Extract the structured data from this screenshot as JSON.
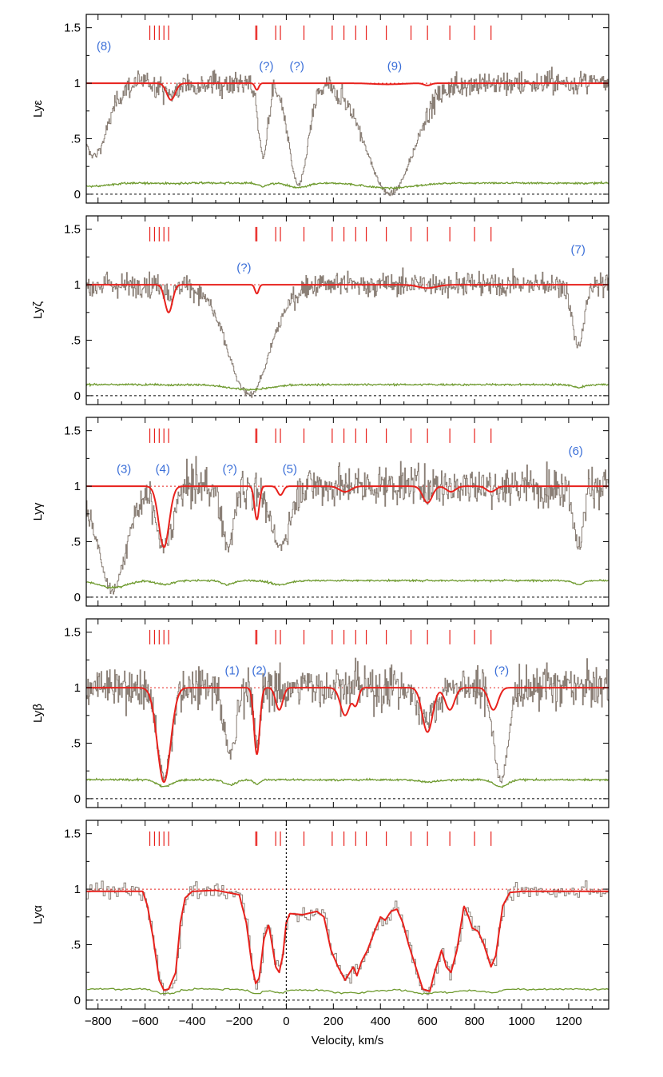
{
  "chart_data": {
    "type": "line",
    "xlabel": "Velocity, km/s",
    "xlim": [
      -850,
      1370
    ],
    "x_ticks": [
      -800,
      -600,
      -400,
      -200,
      0,
      200,
      400,
      600,
      800,
      1000,
      1200
    ],
    "y_ticks": [
      0,
      0.5,
      1,
      1.5
    ],
    "y_tick_labels": [
      "0",
      ".5",
      "1",
      "1.5"
    ],
    "ylim": [
      -0.08,
      1.62
    ],
    "colors": {
      "flux": "#8a7f76",
      "fit": "#e8211c",
      "error": "#6e9a2e",
      "annotation": "#3b6fd8",
      "continuum": "#e8211c"
    },
    "component_markers": [
      -580,
      -560,
      -540,
      -520,
      -500,
      -130,
      -125,
      -45,
      -25,
      75,
      195,
      245,
      295,
      340,
      425,
      530,
      600,
      695,
      800,
      870
    ],
    "series": [
      {
        "name": "observed flux",
        "style": "step, gray"
      },
      {
        "name": "model fit",
        "style": "solid, red"
      },
      {
        "name": "flux error",
        "style": "solid, green"
      }
    ],
    "panels": [
      {
        "ylabel": "Lyε",
        "noise": 0.08,
        "err_base": 0.1,
        "flux_dips": [
          [
            -820,
            60,
            0.65
          ],
          [
            -490,
            30,
            0.1
          ],
          [
            -100,
            20,
            0.65
          ],
          [
            50,
            40,
            0.92
          ],
          [
            440,
            100,
            0.995
          ]
        ],
        "fit_dips": [
          [
            -490,
            18,
            0.15
          ],
          [
            -125,
            8,
            0.06
          ],
          [
            430,
            60,
            0.01
          ],
          [
            600,
            15,
            0.02
          ]
        ],
        "annotations": [
          {
            "text": "(8)",
            "x": -775,
            "y": 1.3
          },
          {
            "text": "(?)",
            "x": -85,
            "y": 1.12
          },
          {
            "text": "(?)",
            "x": 45,
            "y": 1.12
          },
          {
            "text": "(9)",
            "x": 460,
            "y": 1.12
          }
        ]
      },
      {
        "ylabel": "Lyζ",
        "noise": 0.08,
        "err_base": 0.1,
        "flux_dips": [
          [
            -490,
            20,
            0.1
          ],
          [
            -160,
            90,
            0.99
          ],
          [
            1240,
            25,
            0.55
          ]
        ],
        "fit_dips": [
          [
            -500,
            16,
            0.25
          ],
          [
            -125,
            8,
            0.08
          ],
          [
            600,
            40,
            0.03
          ]
        ],
        "annotations": [
          {
            "text": "(?)",
            "x": -180,
            "y": 1.12
          },
          {
            "text": "(7)",
            "x": 1240,
            "y": 1.28
          }
        ]
      },
      {
        "ylabel": "Lyγ",
        "noise": 0.13,
        "err_base": 0.15,
        "flux_dips": [
          [
            -740,
            60,
            0.93
          ],
          [
            -520,
            35,
            0.55
          ],
          [
            -250,
            25,
            0.55
          ],
          [
            -30,
            40,
            0.55
          ],
          [
            1240,
            20,
            0.55
          ]
        ],
        "fit_dips": [
          [
            -520,
            22,
            0.55
          ],
          [
            -125,
            10,
            0.3
          ],
          [
            -25,
            12,
            0.08
          ],
          [
            250,
            25,
            0.05
          ],
          [
            600,
            20,
            0.15
          ],
          [
            700,
            20,
            0.05
          ],
          [
            870,
            20,
            0.05
          ]
        ],
        "annotations": [
          {
            "text": "(3)",
            "x": -690,
            "y": 1.12
          },
          {
            "text": "(4)",
            "x": -525,
            "y": 1.12
          },
          {
            "text": "(?)",
            "x": -240,
            "y": 1.12
          },
          {
            "text": "(5)",
            "x": 15,
            "y": 1.12
          },
          {
            "text": "(6)",
            "x": 1230,
            "y": 1.28
          }
        ]
      },
      {
        "ylabel": "Lyβ",
        "noise": 0.14,
        "err_base": 0.17,
        "flux_dips": [
          [
            -520,
            30,
            0.8
          ],
          [
            -240,
            25,
            0.6
          ],
          [
            -125,
            12,
            0.55
          ],
          [
            600,
            40,
            0.25
          ],
          [
            910,
            28,
            0.85
          ]
        ],
        "fit_dips": [
          [
            -520,
            28,
            0.85
          ],
          [
            -125,
            12,
            0.6
          ],
          [
            -30,
            15,
            0.2
          ],
          [
            250,
            20,
            0.25
          ],
          [
            295,
            12,
            0.15
          ],
          [
            600,
            22,
            0.4
          ],
          [
            695,
            20,
            0.2
          ],
          [
            880,
            20,
            0.2
          ]
        ],
        "annotations": [
          {
            "text": "(1)",
            "x": -230,
            "y": 1.12
          },
          {
            "text": "(2)",
            "x": -115,
            "y": 1.12
          },
          {
            "text": "(?)",
            "x": 915,
            "y": 1.12
          }
        ]
      },
      {
        "ylabel": "Lyα",
        "noise": 0.06,
        "err_base": 0.1,
        "zero_line": true,
        "fit_points": [
          [
            -850,
            0.98
          ],
          [
            -610,
            0.98
          ],
          [
            -590,
            0.85
          ],
          [
            -565,
            0.55
          ],
          [
            -540,
            0.18
          ],
          [
            -520,
            0.09
          ],
          [
            -500,
            0.1
          ],
          [
            -470,
            0.25
          ],
          [
            -450,
            0.7
          ],
          [
            -430,
            0.92
          ],
          [
            -400,
            0.98
          ],
          [
            -300,
            0.99
          ],
          [
            -200,
            0.95
          ],
          [
            -170,
            0.7
          ],
          [
            -145,
            0.3
          ],
          [
            -130,
            0.15
          ],
          [
            -115,
            0.2
          ],
          [
            -95,
            0.55
          ],
          [
            -75,
            0.68
          ],
          [
            -60,
            0.5
          ],
          [
            -45,
            0.3
          ],
          [
            -30,
            0.25
          ],
          [
            -15,
            0.4
          ],
          [
            0,
            0.7
          ],
          [
            15,
            0.78
          ],
          [
            70,
            0.77
          ],
          [
            130,
            0.8
          ],
          [
            160,
            0.75
          ],
          [
            190,
            0.45
          ],
          [
            220,
            0.3
          ],
          [
            250,
            0.18
          ],
          [
            270,
            0.25
          ],
          [
            285,
            0.3
          ],
          [
            300,
            0.22
          ],
          [
            320,
            0.35
          ],
          [
            345,
            0.45
          ],
          [
            375,
            0.62
          ],
          [
            400,
            0.75
          ],
          [
            420,
            0.72
          ],
          [
            445,
            0.8
          ],
          [
            470,
            0.82
          ],
          [
            495,
            0.7
          ],
          [
            520,
            0.5
          ],
          [
            550,
            0.3
          ],
          [
            580,
            0.1
          ],
          [
            610,
            0.08
          ],
          [
            630,
            0.25
          ],
          [
            660,
            0.45
          ],
          [
            680,
            0.3
          ],
          [
            700,
            0.25
          ],
          [
            725,
            0.45
          ],
          [
            755,
            0.85
          ],
          [
            775,
            0.75
          ],
          [
            790,
            0.65
          ],
          [
            815,
            0.62
          ],
          [
            840,
            0.5
          ],
          [
            870,
            0.3
          ],
          [
            890,
            0.4
          ],
          [
            920,
            0.85
          ],
          [
            950,
            0.97
          ],
          [
            1000,
            0.98
          ],
          [
            1370,
            0.98
          ]
        ],
        "annotations": []
      }
    ]
  }
}
